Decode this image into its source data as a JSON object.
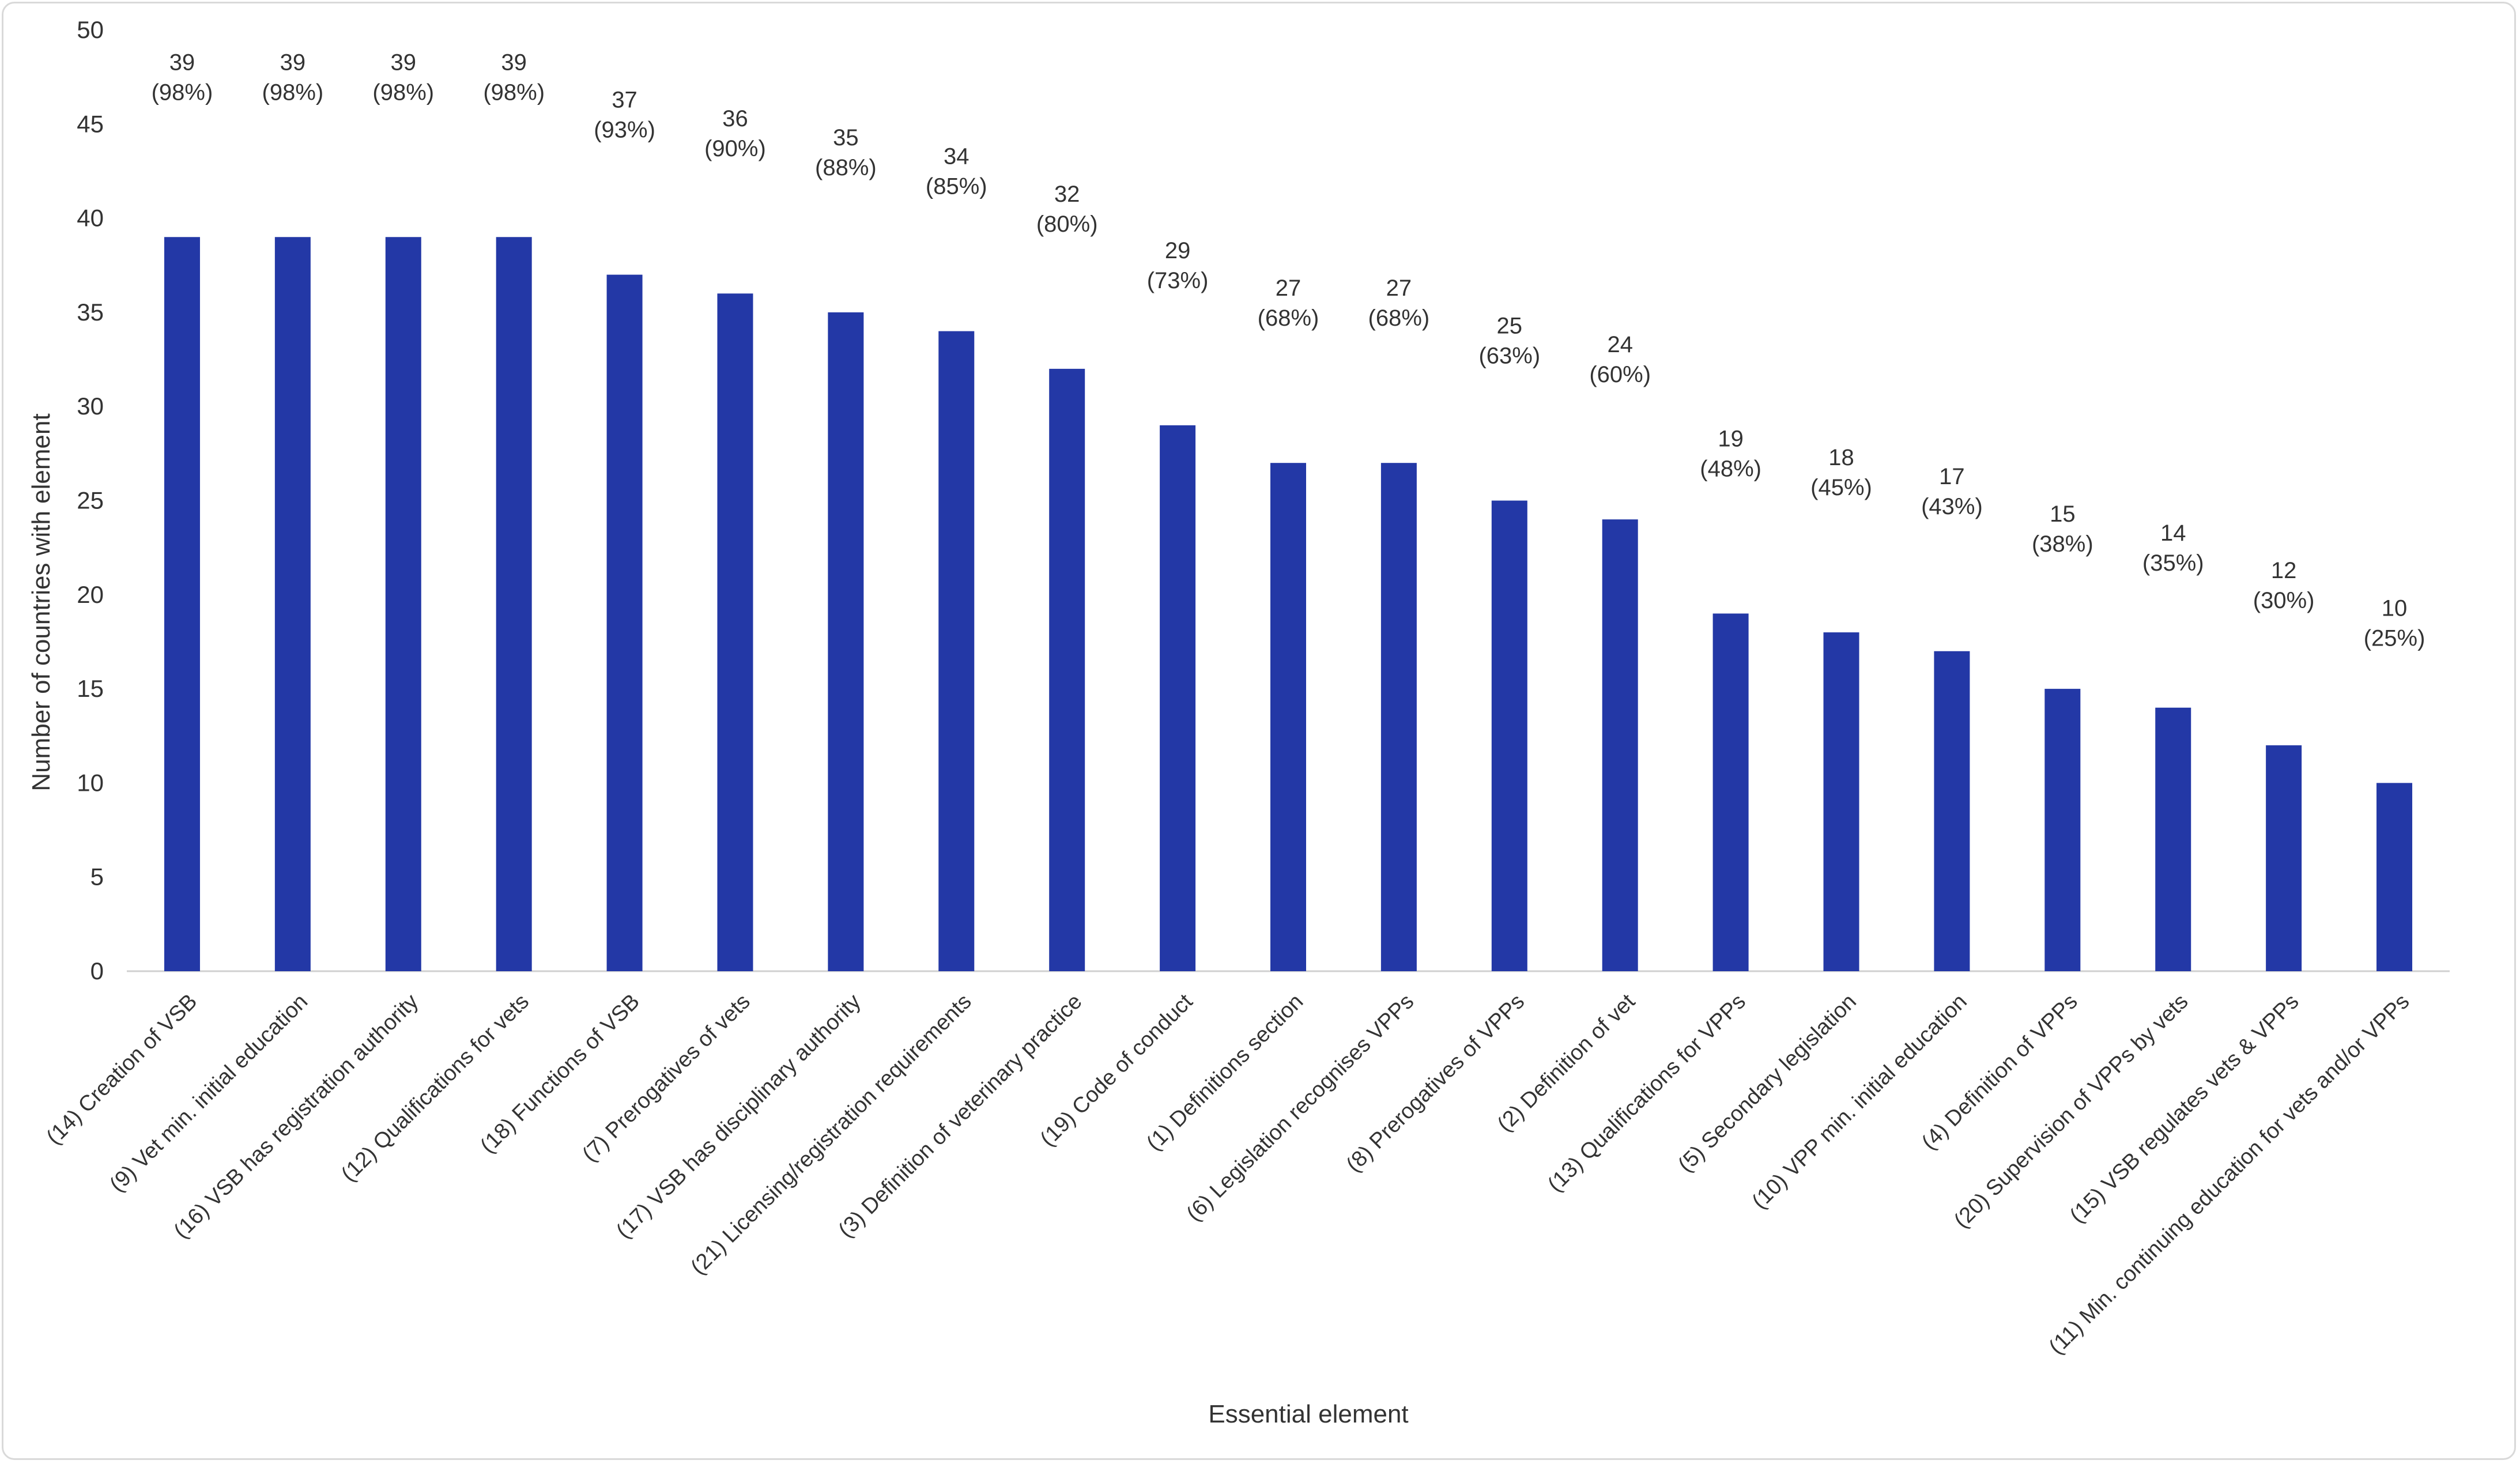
{
  "chart_data": {
    "type": "bar",
    "title": "",
    "xlabel": "Essential element",
    "ylabel": "Number of countries with element",
    "ylim": [
      0,
      50
    ],
    "yticks": [
      0,
      5,
      10,
      15,
      20,
      25,
      30,
      35,
      40,
      45,
      50
    ],
    "grid": false,
    "legend": "none",
    "bar_color": "#2338a6",
    "categories": [
      "(14) Creation of VSB",
      "(9) Vet min. initial education",
      "(16) VSB has registration authority",
      "(12) Qualifications for vets",
      "(18) Functions of VSB",
      "(7) Prerogatives of vets",
      "(17) VSB has disciplinary authority",
      "(21) Licensing/registration requirements",
      "(3) Definition of veterinary practice",
      "(19) Code of conduct",
      "(1) Definitions section",
      "(6) Legislation recognises VPPs",
      "(8) Prerogatives of VPPs",
      "(2) Definition of vet",
      "(13) Qualifications for VPPs",
      "(5) Secondary legislation",
      "(10) VPP min. initial education",
      "(4) Definition of VPPs",
      "(20) Supervision of VPPs by vets",
      "(15) VSB regulates vets & VPPs",
      "(11) Min. continuing education for vets and/or VPPs"
    ],
    "values": [
      39,
      39,
      39,
      39,
      37,
      36,
      35,
      34,
      32,
      29,
      27,
      27,
      25,
      24,
      19,
      18,
      17,
      15,
      14,
      12,
      10
    ],
    "percent_labels": [
      "(98%)",
      "(98%)",
      "(98%)",
      "(98%)",
      "(93%)",
      "(90%)",
      "(88%)",
      "(85%)",
      "(80%)",
      "(73%)",
      "(68%)",
      "(68%)",
      "(63%)",
      "(60%)",
      "(48%)",
      "(45%)",
      "(43%)",
      "(38%)",
      "(35%)",
      "(30%)",
      "(25%)"
    ]
  }
}
